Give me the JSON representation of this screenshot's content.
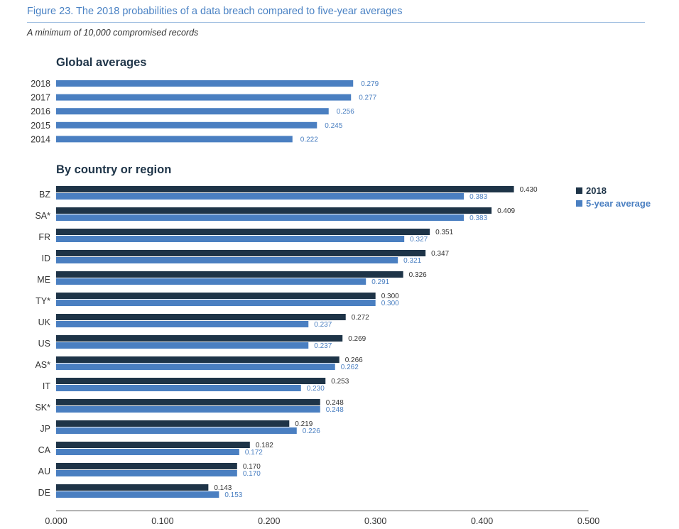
{
  "figure": {
    "title": "Figure 23. The 2018 probabilities of a data breach compared to five-year averages",
    "subtitle": "A minimum of 10,000 compromised records"
  },
  "sections": {
    "global_title": "Global averages",
    "country_title": "By country or region"
  },
  "legend": {
    "items": [
      {
        "label": "2018",
        "color": "#1e3448"
      },
      {
        "label": "5-year average",
        "color": "#4a7fc1"
      }
    ]
  },
  "colors": {
    "dark": "#1e3448",
    "light": "#4a7fc1",
    "text": "#333333"
  },
  "chart_data": [
    {
      "type": "bar",
      "orientation": "horizontal",
      "title": "Global averages",
      "categories": [
        "2018",
        "2017",
        "2016",
        "2015",
        "2014"
      ],
      "values": [
        0.279,
        0.277,
        0.256,
        0.245,
        0.222
      ],
      "value_labels": [
        "0.279",
        "0.277",
        "0.256",
        "0.245",
        "0.222"
      ],
      "xlim": [
        0,
        0.5
      ]
    },
    {
      "type": "bar",
      "orientation": "horizontal",
      "title": "By country or region",
      "categories": [
        "BZ",
        "SA*",
        "FR",
        "ID",
        "ME",
        "TY*",
        "UK",
        "US",
        "AS*",
        "IT",
        "SK*",
        "JP",
        "CA",
        "AU",
        "DE"
      ],
      "series": [
        {
          "name": "2018",
          "values": [
            0.43,
            0.409,
            0.351,
            0.347,
            0.326,
            0.3,
            0.272,
            0.269,
            0.266,
            0.253,
            0.248,
            0.219,
            0.182,
            0.17,
            0.143
          ],
          "value_labels": [
            "0.430",
            "0.409",
            "0.351",
            "0.347",
            "0.326",
            "0.300",
            "0.272",
            "0.269",
            "0.266",
            "0.253",
            "0.248",
            "0.219",
            "0.182",
            "0.170",
            "0.143"
          ]
        },
        {
          "name": "5-year average",
          "values": [
            0.383,
            0.383,
            0.327,
            0.321,
            0.291,
            0.3,
            0.237,
            0.237,
            0.262,
            0.23,
            0.248,
            0.226,
            0.172,
            0.17,
            0.153
          ],
          "value_labels": [
            "0.383",
            "0.383",
            "0.327",
            "0.321",
            "0.291",
            "0.300",
            "0.237",
            "0.237",
            "0.262",
            "0.230",
            "0.248",
            "0.226",
            "0.172",
            "0.170",
            "0.153"
          ]
        }
      ],
      "x_ticks": [
        "0.000",
        "0.100",
        "0.200",
        "0.300",
        "0.400",
        "0.500"
      ],
      "xlim": [
        0,
        0.5
      ],
      "grid": false,
      "legend_position": "top-right"
    }
  ]
}
